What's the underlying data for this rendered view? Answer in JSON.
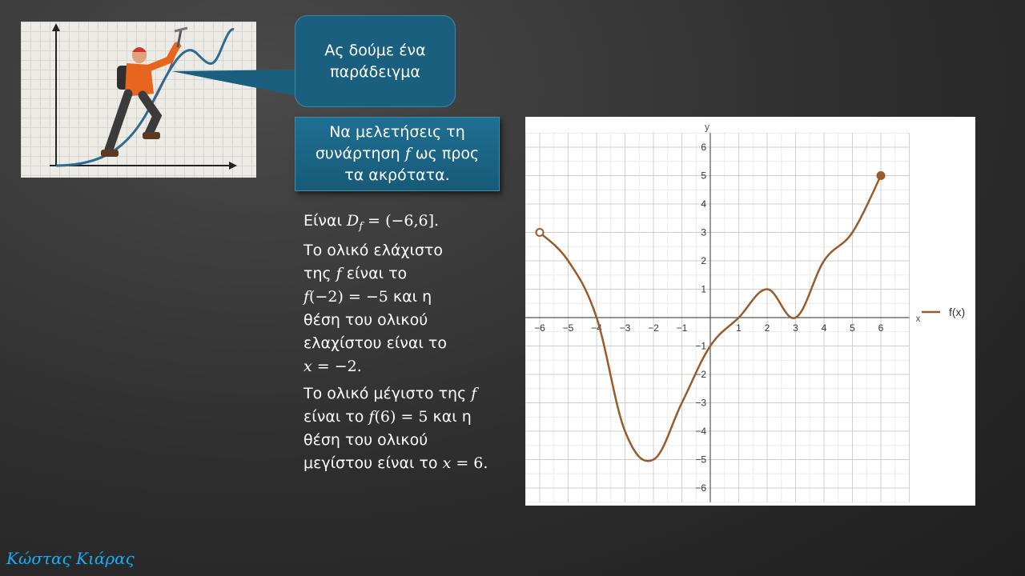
{
  "callout": {
    "text": "Ας δούμε ένα παράδειγμα"
  },
  "task": {
    "line1": "Να μελετήσεις τη",
    "line2a": "συνάρτηση ",
    "fvar": "f",
    "line2b": " ως προς",
    "line3": "τα ακρότατα."
  },
  "body": {
    "domain_prefix": "Είναι ",
    "domain_math": "D",
    "domain_sub": "f",
    "domain_rest": " = (−6,6].",
    "min_l1": "Το ολικό ελάχιστο",
    "min_l2a": "της ",
    "min_f": "f",
    "min_l2b": " είναι το",
    "min_f2": "f",
    "min_eq": "(−2) = −5",
    "min_l3b": " και η",
    "min_l4": "θέση του ολικού",
    "min_l5": "ελαχίστου είναι το",
    "min_x": "x",
    "min_xeq": " = −2.",
    "max_l1a": "Το ολικό μέγιστο της ",
    "max_f": "f",
    "max_l2a": "είναι το ",
    "max_f2": "f",
    "max_eq": "(6) = 5",
    "max_l2b": " και η",
    "max_l3": "θέση του ολικού",
    "max_l4a": "μεγίστου είναι το ",
    "max_x": "x",
    "max_xeq": " = 6."
  },
  "chart_data": {
    "type": "line",
    "xlabel": "x",
    "ylabel": "y",
    "xlim": [
      -6.5,
      7
    ],
    "ylim": [
      -6.5,
      6.5
    ],
    "x_ticks": [
      -6,
      -5,
      -4,
      -3,
      -2,
      -1,
      1,
      2,
      3,
      4,
      5,
      6
    ],
    "y_ticks": [
      -6,
      -5,
      -4,
      -3,
      -2,
      -1,
      1,
      2,
      3,
      4,
      5,
      6
    ],
    "grid": true,
    "legend": "right",
    "series": [
      {
        "name": "f(x)",
        "color": "#9a5b2a",
        "x": [
          -6,
          -5,
          -4,
          -3,
          -2,
          -1,
          0,
          1,
          2,
          3,
          4,
          5,
          6
        ],
        "y": [
          3,
          2,
          0,
          -4,
          -5,
          -3,
          -1,
          0,
          1,
          0,
          2,
          3,
          5
        ]
      }
    ],
    "endpoints": [
      {
        "x": -6,
        "y": 3,
        "style": "open"
      },
      {
        "x": 6,
        "y": 5,
        "style": "closed"
      }
    ]
  },
  "signature": "Κώστας Κιάρας",
  "colors": {
    "callout_bg": "#1b5f7e",
    "task_bg": "#1f6f93",
    "curve": "#9a5b2a"
  }
}
